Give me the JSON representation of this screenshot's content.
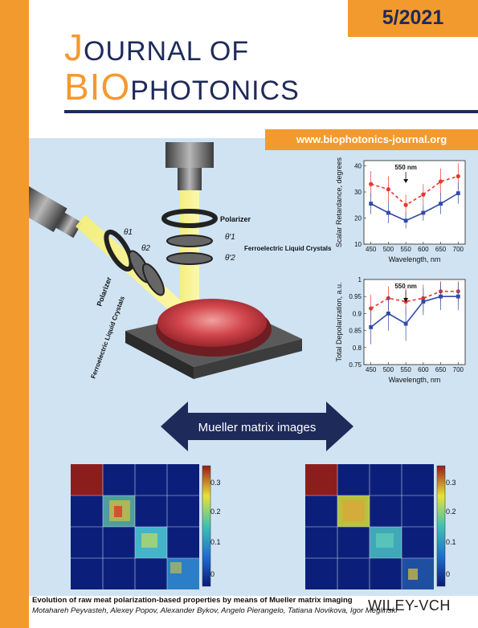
{
  "cover": {
    "issue": "5/2021",
    "journal_title": {
      "line1_initial": "J",
      "line1_rest": "OURNAL OF",
      "line2_orange": "BIO",
      "line2_rest": "PHOTONICS"
    },
    "website": "www.biophotonics-journal.org",
    "banner": "Mueller matrix images",
    "publisher": "WILEY-VCH",
    "article_title": "Evolution of raw meat polarization-based properties by means of Mueller matrix imaging",
    "authors": "Motahareh Peyvasteh, Alexey Popov, Alexander Bykov, Angelo Pierangelo, Tatiana Novikova, Igor Meglinski",
    "colors": {
      "orange": "#f39a2e",
      "navy": "#1e2a5a",
      "light_blue": "#cfe3f3"
    }
  },
  "setup_diagram": {
    "labels": {
      "polarizer_top": "Polarizer",
      "theta1_prime": "θ′1",
      "theta2_prime": "θ′2",
      "flc_top": "Ferroelectric Liquid Crystals",
      "polarizer_left": "Polarizer",
      "theta1": "θ1",
      "theta2": "θ2",
      "flc_left": "Ferroelectric Liquid Crystals"
    }
  },
  "colorbar": {
    "ticks": [
      "0.3",
      "0.2",
      "0.1",
      "0"
    ]
  },
  "chart_data": [
    {
      "type": "line",
      "xlabel": "Wavelength, nm",
      "ylabel": "Scalar Retardance, degrees",
      "annotation": "550 nm",
      "x": [
        450,
        500,
        550,
        600,
        650,
        700
      ],
      "xticks": [
        "450",
        "500",
        "550",
        "600",
        "650",
        "700"
      ],
      "yticks": [
        "10",
        "20",
        "30",
        "40"
      ],
      "xlim": [
        430,
        720
      ],
      "ylim": [
        10,
        42
      ],
      "series": [
        {
          "color": "#e23a2f",
          "dashed": true,
          "values": [
            33,
            31,
            25,
            29,
            34,
            36
          ],
          "err": [
            5,
            5,
            4,
            4,
            5,
            5
          ]
        },
        {
          "color": "#2f4aa8",
          "dashed": false,
          "values": [
            25.5,
            22,
            19,
            22,
            25.5,
            29.5
          ],
          "err": [
            4,
            4,
            3,
            3,
            4,
            4
          ]
        }
      ]
    },
    {
      "type": "line",
      "xlabel": "Wavelength, nm",
      "ylabel": "Total Depolarization, a.u.",
      "annotation": "550 nm",
      "x": [
        450,
        500,
        550,
        600,
        650,
        700
      ],
      "xticks": [
        "450",
        "500",
        "550",
        "600",
        "650",
        "700"
      ],
      "yticks": [
        "0.75",
        "0.8",
        "0.85",
        "0.9",
        "0.95",
        "1"
      ],
      "xlim": [
        430,
        720
      ],
      "ylim": [
        0.75,
        1.0
      ],
      "series": [
        {
          "color": "#e23a2f",
          "dashed": true,
          "values": [
            0.915,
            0.945,
            0.935,
            0.945,
            0.965,
            0.965
          ],
          "err": [
            0.04,
            0.035,
            0.04,
            0.04,
            0.03,
            0.03
          ]
        },
        {
          "color": "#2f4aa8",
          "dashed": false,
          "values": [
            0.86,
            0.9,
            0.87,
            0.935,
            0.95,
            0.95
          ],
          "err": [
            0.05,
            0.05,
            0.05,
            0.04,
            0.04,
            0.04
          ]
        }
      ]
    }
  ]
}
